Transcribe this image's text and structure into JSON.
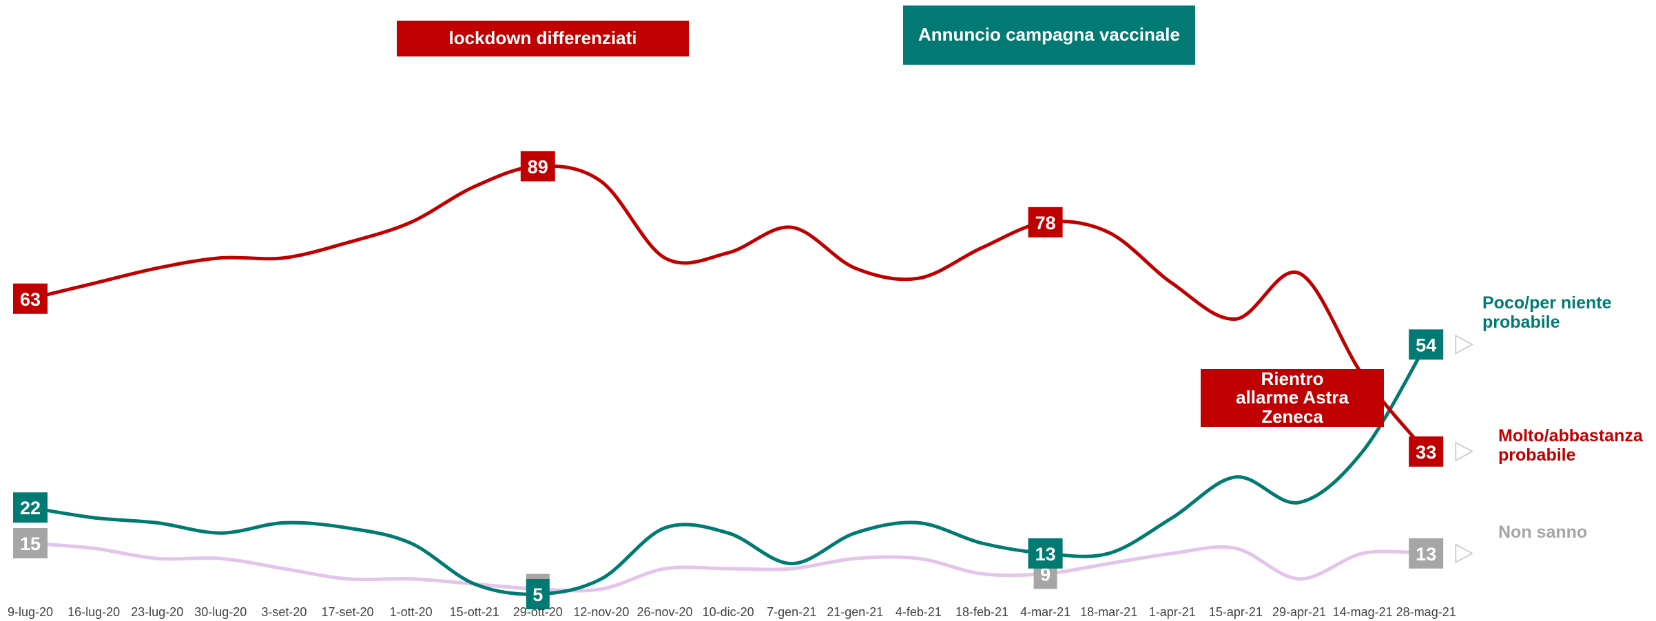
{
  "chart_data": {
    "type": "line",
    "title": "",
    "xlabel": "",
    "ylabel": "",
    "ylim": [
      0,
      100
    ],
    "grid": false,
    "legend_placement": "right",
    "categories": [
      "9-lug-20",
      "16-lug-20",
      "23-lug-20",
      "30-lug-20",
      "3-set-20",
      "17-set-20",
      "1-ott-20",
      "15-ott-21",
      "29-ott-20",
      "12-nov-20",
      "26-nov-20",
      "10-dic-20",
      "7-gen-21",
      "21-gen-21",
      "4-feb-21",
      "18-feb-21",
      "4-mar-21",
      "18-mar-21",
      "1-apr-21",
      "15-apr-21",
      "29-apr-21",
      "14-mag-21",
      "28-mag-21"
    ],
    "series": [
      {
        "name": "Molto/abbastanza probabile",
        "color": "#c00000",
        "values": [
          63,
          66,
          69,
          71,
          71,
          74,
          78,
          85,
          89,
          86,
          71,
          72,
          77,
          69,
          67,
          73,
          78,
          76,
          66,
          59,
          68,
          48,
          33
        ],
        "labeled_points": [
          {
            "index": 0,
            "label": "63"
          },
          {
            "index": 8,
            "label": "89"
          },
          {
            "index": 16,
            "label": "78"
          },
          {
            "index": 22,
            "label": "33"
          }
        ]
      },
      {
        "name": "Poco/per niente probabile",
        "color": "#007a73",
        "values": [
          22,
          20,
          19,
          17,
          19,
          18,
          15,
          7,
          5,
          8,
          18,
          17,
          11,
          17,
          19,
          15,
          13,
          13,
          20,
          28,
          23,
          33,
          54
        ],
        "labeled_points": [
          {
            "index": 0,
            "label": "22"
          },
          {
            "index": 8,
            "label": "5"
          },
          {
            "index": 16,
            "label": "13"
          },
          {
            "index": 22,
            "label": "54"
          }
        ]
      },
      {
        "name": "Non sanno",
        "color": "#e3c4ea",
        "label_color": "#a6a6a6",
        "values": [
          15,
          14,
          12,
          12,
          10,
          8,
          8,
          7,
          6,
          6,
          10,
          10,
          10,
          12,
          12,
          9,
          9,
          11,
          13,
          14,
          8,
          13,
          13
        ],
        "labeled_points": [
          {
            "index": 0,
            "label": "15"
          },
          {
            "index": 8,
            "label": "6"
          },
          {
            "index": 16,
            "label": "9"
          },
          {
            "index": 22,
            "label": "13"
          }
        ]
      }
    ],
    "annotations": [
      {
        "text": "lockdown differenziati",
        "color": "#c00000"
      },
      {
        "text": "Annuncio campagna vaccinale",
        "color": "#007a73"
      },
      {
        "text": "Rientro allarme Astra Zeneca",
        "color": "#c00000"
      }
    ]
  },
  "legend": {
    "poco": "Poco/per niente probabile",
    "molto": "Molto/abbastanza probabile",
    "non_sanno": "Non sanno"
  }
}
